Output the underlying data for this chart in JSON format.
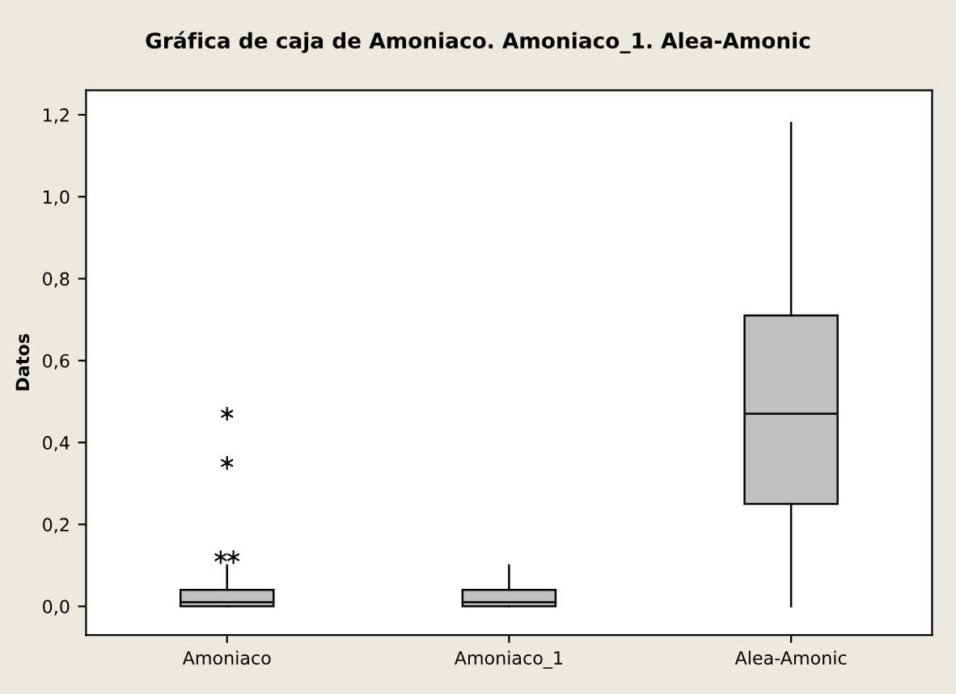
{
  "chart_data": {
    "type": "box",
    "title": "Gráfica de caja de Amoniaco. Amoniaco_1. Alea-Amonic",
    "ylabel": "Datos",
    "categories": [
      "Amoniaco",
      "Amoniaco_1",
      "Alea-Amonic"
    ],
    "boxes": [
      {
        "low": 0,
        "q1": 0,
        "median": 0.01,
        "q3": 0.04,
        "high": 0.1,
        "outliers": [
          0.12,
          0.12,
          0.35,
          0.47
        ]
      },
      {
        "low": 0,
        "q1": 0,
        "median": 0.01,
        "q3": 0.04,
        "high": 0.1
      },
      {
        "low": 0,
        "q1": 0.25,
        "median": 0.47,
        "q3": 0.71,
        "high": 1.18
      }
    ],
    "color": "#c0c0c0",
    "ylim": [
      -0.07,
      1.26
    ],
    "yticks": [
      {
        "value": 0,
        "label": "0,0"
      },
      {
        "value": 0.2,
        "label": "0,2"
      },
      {
        "value": 0.4,
        "label": "0,4"
      },
      {
        "value": 0.6,
        "label": "0,6"
      },
      {
        "value": 0.8,
        "label": "0,8"
      },
      {
        "value": 1.0,
        "label": "1,0"
      },
      {
        "value": 1.2,
        "label": "1,2"
      }
    ],
    "grid": false
  }
}
